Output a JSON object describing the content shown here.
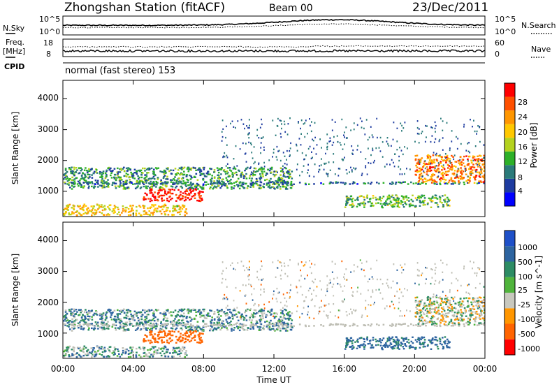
{
  "header": {
    "title": "Zhongshan Station (fitACF)",
    "beam": "Beam 00",
    "date": "23/Dec/2011"
  },
  "noise_panel": {
    "left_label": "N.Sky",
    "left_ticks": [
      "10^5",
      "10^0"
    ],
    "right_ticks": [
      "10^5",
      "10^0"
    ],
    "right_label": "N.Search"
  },
  "freq_panel": {
    "left_label_line1": "Freq.",
    "left_label_line2": "[MHz]",
    "left_ticks": [
      "18",
      "8"
    ],
    "right_ticks": [
      "60",
      "0"
    ],
    "right_label": "Nave"
  },
  "cpid_panel": {
    "label": "CPID",
    "text": "normal (fast stereo) 153"
  },
  "x_axis": {
    "ticks": [
      "00:00",
      "04:00",
      "08:00",
      "12:00",
      "16:00",
      "20:00",
      "00:00"
    ],
    "label": "Time UT"
  },
  "power_panel": {
    "ylabel": "Slant Range [km]",
    "yticks": [
      "1000",
      "2000",
      "3000",
      "4000"
    ],
    "colorbar_label": "Power [dB]",
    "colorbar_ticks": [
      "4",
      "8",
      "12",
      "16",
      "20",
      "24",
      "28"
    ],
    "colors": [
      "#0000ff",
      "#1e3ca0",
      "#2a7a7a",
      "#2db028",
      "#b4d21e",
      "#ffc800",
      "#ff9600",
      "#ff5000",
      "#ff0000"
    ]
  },
  "velocity_panel": {
    "ylabel": "Slant Range [km]",
    "yticks": [
      "1000",
      "2000",
      "3000",
      "4000"
    ],
    "colorbar_label": "Velocity [m s^-1]",
    "colorbar_ticks": [
      "1000",
      "500",
      "100",
      "25",
      "-25",
      "-100",
      "-500",
      "-1000"
    ],
    "colors": [
      "#1e50c8",
      "#2d64a0",
      "#2d8c64",
      "#50b43c",
      "#c8c8be",
      "#ff9600",
      "#ff6400",
      "#ff0000"
    ],
    "ground_scatter_color": "#bebeb4"
  },
  "chart_data": {
    "type": "heatmap",
    "x_range_hours": [
      0,
      24
    ],
    "y_range_km": [
      180,
      4600
    ],
    "scatter_regions": [
      {
        "name": "near-range band",
        "t0": 0,
        "t1": 7,
        "r0": 250,
        "r1": 600,
        "power_db": 18,
        "velocity_ms": 60
      },
      {
        "name": "main band",
        "t0": 0,
        "t1": 13,
        "r0": 1100,
        "r1": 1800,
        "power_db": 10,
        "velocity_ms": 80
      },
      {
        "name": "strong echo",
        "t0": 4.5,
        "t1": 8,
        "r0": 700,
        "r1": 1100,
        "power_db": 28,
        "velocity_ms": -200
      },
      {
        "name": "ground scatter strip",
        "t0": 0,
        "t1": 24,
        "r0": 1250,
        "r1": 1330,
        "power_db": 8,
        "velocity_ms": 0
      },
      {
        "name": "evening band",
        "t0": 20,
        "t1": 24,
        "r0": 1300,
        "r1": 2200,
        "power_db": 22,
        "velocity_ms": 0
      },
      {
        "name": "late echo",
        "t0": 16,
        "t1": 22,
        "r0": 500,
        "r1": 900,
        "power_db": 12,
        "velocity_ms": 150
      }
    ]
  }
}
